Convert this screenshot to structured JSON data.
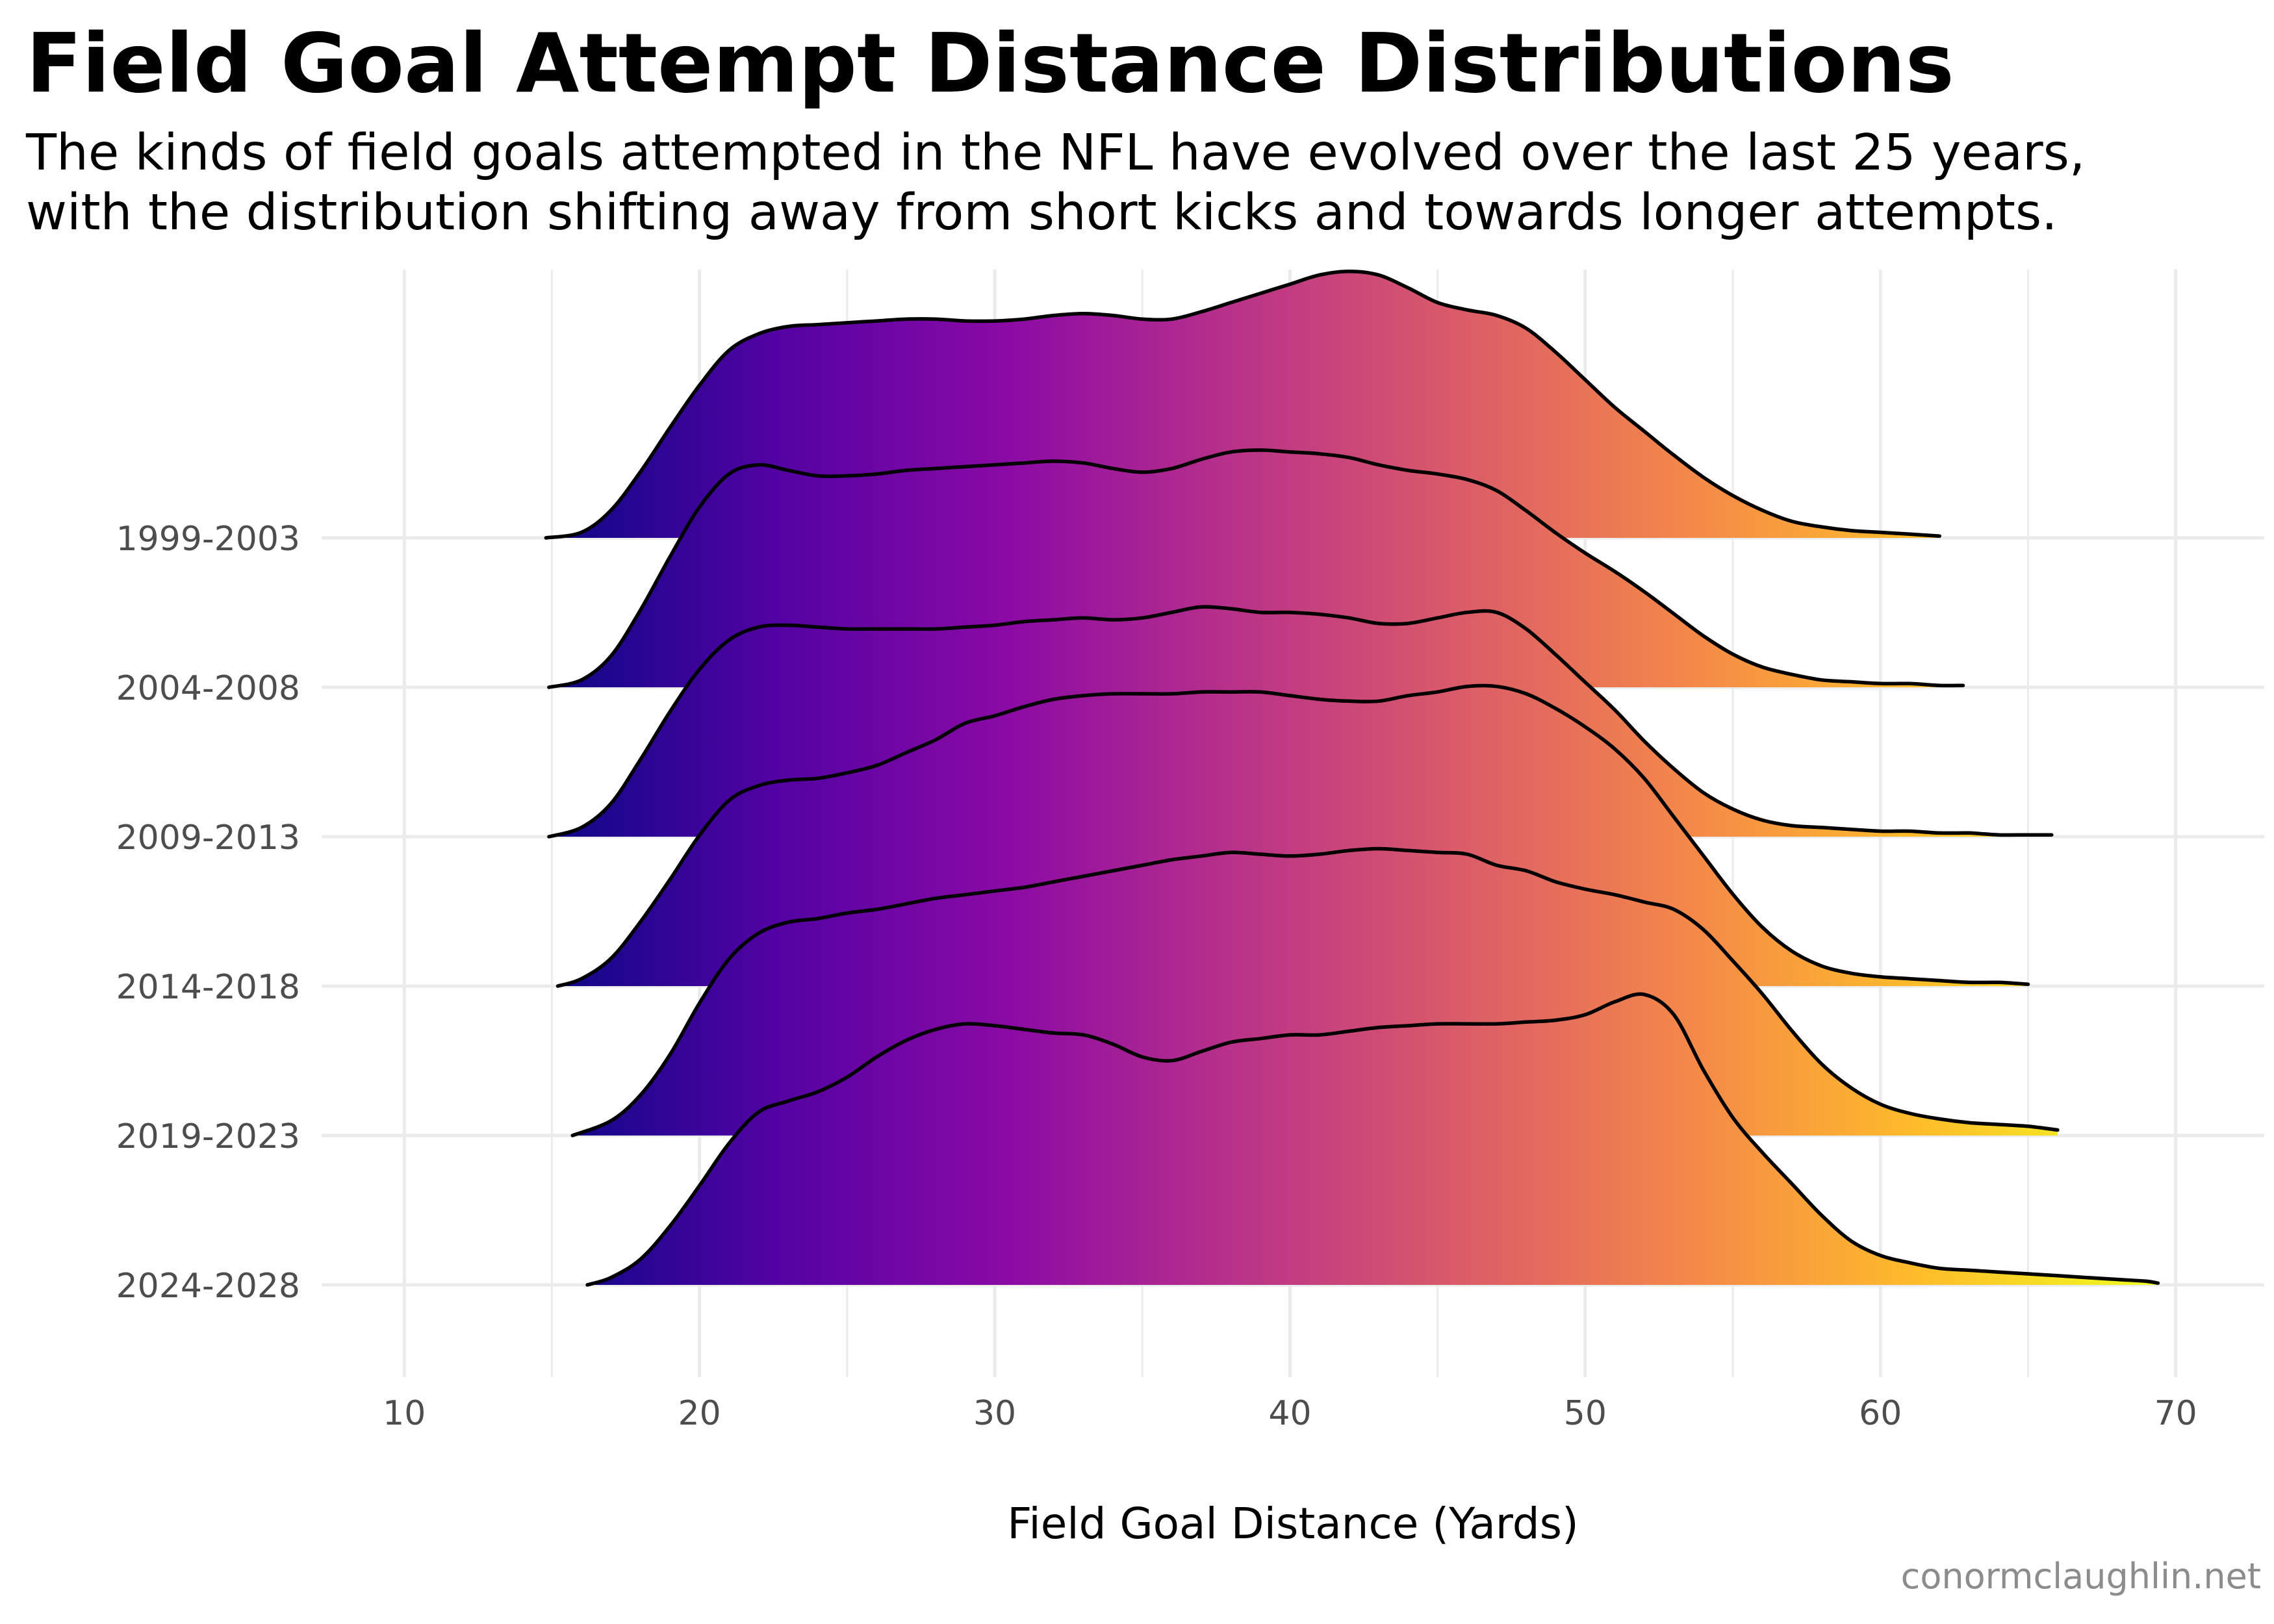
{
  "title": "Field Goal Attempt Distance Distributions",
  "subtitle": [
    "The kinds of field goals attempted in the NFL have evolved over the last 25 years,",
    "with the distribution shifting away from short kicks and towards longer attempts."
  ],
  "credit": "conormclaughlin.net",
  "chart_data": {
    "type": "ridgeline",
    "title": "Field Goal Attempt Distance Distributions",
    "xlabel": "Field Goal Distance (Yards)",
    "ylabel": "",
    "xlim": [
      7.2,
      73
    ],
    "x_ticks": [
      10,
      20,
      30,
      40,
      50,
      60,
      70
    ],
    "grid": true,
    "legend": "none",
    "fill": "horizontal gradient by distance (plasma palette)",
    "colors": {
      "gradient": [
        "#0d0887",
        "#5402a3",
        "#8b0aa5",
        "#b93289",
        "#db5c68",
        "#f48849",
        "#febc2a",
        "#f0f921"
      ],
      "outline": "#000000",
      "grid": "#ebebeb"
    },
    "series": [
      {
        "name": "1999-2003",
        "x": [
          14.8,
          16,
          17,
          18,
          19,
          20,
          21,
          22,
          23,
          24,
          25,
          26,
          27,
          28,
          29,
          30,
          31,
          32,
          33,
          34,
          35,
          36,
          37,
          38,
          39,
          40,
          41,
          42,
          43,
          44,
          45,
          46,
          47,
          48,
          49,
          50,
          51,
          52,
          53,
          54,
          55,
          56,
          57,
          58,
          59,
          60,
          61,
          62
        ],
        "y": [
          0.0,
          0.03,
          0.15,
          0.36,
          0.6,
          0.83,
          1.02,
          1.11,
          1.15,
          1.16,
          1.17,
          1.18,
          1.19,
          1.19,
          1.18,
          1.18,
          1.19,
          1.21,
          1.22,
          1.21,
          1.19,
          1.19,
          1.23,
          1.28,
          1.33,
          1.38,
          1.43,
          1.45,
          1.43,
          1.36,
          1.28,
          1.24,
          1.21,
          1.14,
          1.01,
          0.86,
          0.71,
          0.58,
          0.45,
          0.33,
          0.23,
          0.15,
          0.09,
          0.06,
          0.04,
          0.03,
          0.02,
          0.01
        ]
      },
      {
        "name": "2004-2008",
        "x": [
          14.9,
          16,
          17,
          18,
          19,
          20,
          21,
          22,
          23,
          24,
          25,
          26,
          27,
          28,
          29,
          30,
          31,
          32,
          33,
          34,
          35,
          36,
          37,
          38,
          39,
          40,
          41,
          42,
          43,
          44,
          45,
          46,
          47,
          48,
          49,
          50,
          51,
          52,
          53,
          54,
          55,
          56,
          57,
          58,
          59,
          60,
          61,
          62,
          62.8
        ],
        "y": [
          0.0,
          0.04,
          0.17,
          0.42,
          0.71,
          0.98,
          1.16,
          1.21,
          1.18,
          1.15,
          1.15,
          1.16,
          1.18,
          1.19,
          1.2,
          1.21,
          1.22,
          1.23,
          1.22,
          1.19,
          1.17,
          1.19,
          1.24,
          1.28,
          1.29,
          1.28,
          1.27,
          1.25,
          1.21,
          1.18,
          1.16,
          1.13,
          1.07,
          0.96,
          0.84,
          0.73,
          0.63,
          0.52,
          0.4,
          0.28,
          0.18,
          0.11,
          0.07,
          0.04,
          0.03,
          0.02,
          0.02,
          0.01,
          0.01
        ]
      },
      {
        "name": "2009-2013",
        "x": [
          14.9,
          16,
          17,
          18,
          19,
          20,
          21,
          22,
          23,
          24,
          25,
          26,
          27,
          28,
          29,
          30,
          31,
          32,
          33,
          34,
          35,
          36,
          37,
          38,
          39,
          40,
          41,
          42,
          43,
          44,
          45,
          46,
          47,
          48,
          49,
          50,
          51,
          52,
          53,
          54,
          55,
          56,
          57,
          58,
          59,
          60,
          61,
          62,
          63,
          64,
          65,
          65.8
        ],
        "y": [
          0.0,
          0.05,
          0.18,
          0.42,
          0.68,
          0.91,
          1.07,
          1.14,
          1.15,
          1.14,
          1.13,
          1.13,
          1.13,
          1.13,
          1.14,
          1.15,
          1.17,
          1.18,
          1.19,
          1.18,
          1.19,
          1.22,
          1.25,
          1.24,
          1.22,
          1.22,
          1.21,
          1.19,
          1.16,
          1.16,
          1.19,
          1.22,
          1.22,
          1.13,
          0.99,
          0.84,
          0.69,
          0.52,
          0.37,
          0.24,
          0.15,
          0.09,
          0.06,
          0.05,
          0.04,
          0.03,
          0.03,
          0.02,
          0.02,
          0.01,
          0.01,
          0.01
        ]
      },
      {
        "name": "2014-2018",
        "x": [
          15.2,
          16,
          17,
          18,
          19,
          20,
          21,
          22,
          23,
          24,
          25,
          26,
          27,
          28,
          29,
          30,
          31,
          32,
          33,
          34,
          35,
          36,
          37,
          38,
          39,
          40,
          41,
          42,
          43,
          44,
          45,
          46,
          47,
          48,
          49,
          50,
          51,
          52,
          53,
          54,
          55,
          56,
          57,
          58,
          59,
          60,
          61,
          62,
          63,
          64,
          65
        ],
        "y": [
          0.0,
          0.04,
          0.15,
          0.35,
          0.58,
          0.82,
          1.01,
          1.09,
          1.12,
          1.13,
          1.16,
          1.2,
          1.27,
          1.34,
          1.43,
          1.47,
          1.52,
          1.56,
          1.58,
          1.59,
          1.59,
          1.59,
          1.6,
          1.6,
          1.6,
          1.58,
          1.56,
          1.55,
          1.55,
          1.58,
          1.6,
          1.63,
          1.63,
          1.59,
          1.51,
          1.41,
          1.29,
          1.13,
          0.92,
          0.71,
          0.5,
          0.32,
          0.19,
          0.11,
          0.07,
          0.05,
          0.04,
          0.03,
          0.02,
          0.02,
          0.01
        ]
      },
      {
        "name": "2019-2023",
        "x": [
          15.7,
          17,
          18,
          19,
          20,
          21,
          22,
          23,
          24,
          25,
          26,
          27,
          28,
          29,
          30,
          31,
          32,
          33,
          34,
          35,
          36,
          37,
          38,
          39,
          40,
          41,
          42,
          43,
          44,
          45,
          46,
          47,
          48,
          49,
          50,
          51,
          52,
          53,
          54,
          55,
          56,
          57,
          58,
          59,
          60,
          61,
          62,
          63,
          64,
          65,
          66
        ],
        "y": [
          0.0,
          0.08,
          0.22,
          0.44,
          0.72,
          0.96,
          1.1,
          1.16,
          1.18,
          1.21,
          1.23,
          1.26,
          1.29,
          1.31,
          1.33,
          1.35,
          1.38,
          1.41,
          1.44,
          1.47,
          1.5,
          1.52,
          1.54,
          1.53,
          1.52,
          1.53,
          1.55,
          1.56,
          1.55,
          1.54,
          1.53,
          1.47,
          1.44,
          1.38,
          1.34,
          1.31,
          1.27,
          1.23,
          1.12,
          0.95,
          0.77,
          0.57,
          0.39,
          0.26,
          0.17,
          0.12,
          0.09,
          0.07,
          0.06,
          0.05,
          0.03
        ]
      },
      {
        "name": "2024-2028",
        "x": [
          16.2,
          17,
          18,
          19,
          20,
          21,
          22,
          23,
          24,
          25,
          26,
          27,
          28,
          29,
          30,
          31,
          32,
          33,
          34,
          35,
          36,
          37,
          38,
          39,
          40,
          41,
          42,
          43,
          44,
          45,
          46,
          47,
          48,
          49,
          50,
          51,
          52,
          53,
          54,
          55,
          56,
          57,
          58,
          59,
          60,
          61,
          62,
          63,
          64,
          65,
          66,
          67,
          68,
          69,
          69.4
        ],
        "y": [
          0.0,
          0.04,
          0.14,
          0.32,
          0.54,
          0.77,
          0.94,
          1.0,
          1.05,
          1.13,
          1.24,
          1.33,
          1.39,
          1.42,
          1.41,
          1.39,
          1.37,
          1.36,
          1.31,
          1.24,
          1.22,
          1.27,
          1.32,
          1.34,
          1.36,
          1.36,
          1.38,
          1.4,
          1.41,
          1.42,
          1.42,
          1.42,
          1.43,
          1.44,
          1.47,
          1.54,
          1.58,
          1.47,
          1.17,
          0.91,
          0.72,
          0.55,
          0.38,
          0.24,
          0.16,
          0.12,
          0.09,
          0.08,
          0.07,
          0.06,
          0.05,
          0.04,
          0.03,
          0.02,
          0.01
        ]
      }
    ]
  }
}
